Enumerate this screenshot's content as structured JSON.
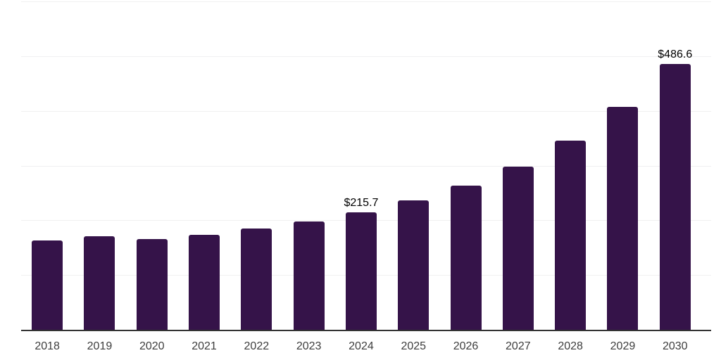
{
  "chart_data": {
    "type": "bar",
    "title": "",
    "xlabel": "",
    "ylabel": "",
    "categories": [
      "2018",
      "2019",
      "2020",
      "2021",
      "2022",
      "2023",
      "2024",
      "2025",
      "2026",
      "2027",
      "2028",
      "2029",
      "2030"
    ],
    "values": [
      164,
      172,
      167,
      175,
      186,
      199,
      215.7,
      238,
      265,
      300,
      347,
      409,
      486.6
    ],
    "data_labels": [
      {
        "category": "2024",
        "text": "$215.7"
      },
      {
        "category": "2030",
        "text": "$486.6"
      }
    ],
    "ylim": [
      0,
      600
    ],
    "gridline_step": 100,
    "grid": "horizontal",
    "legend_position": "none",
    "colors": {
      "bar": "#351349",
      "gridline": "#f0f0f1",
      "axis_line": "#333333",
      "tick_label": "#3d3d3d",
      "data_label": "#000000",
      "background": "#ffffff"
    }
  }
}
